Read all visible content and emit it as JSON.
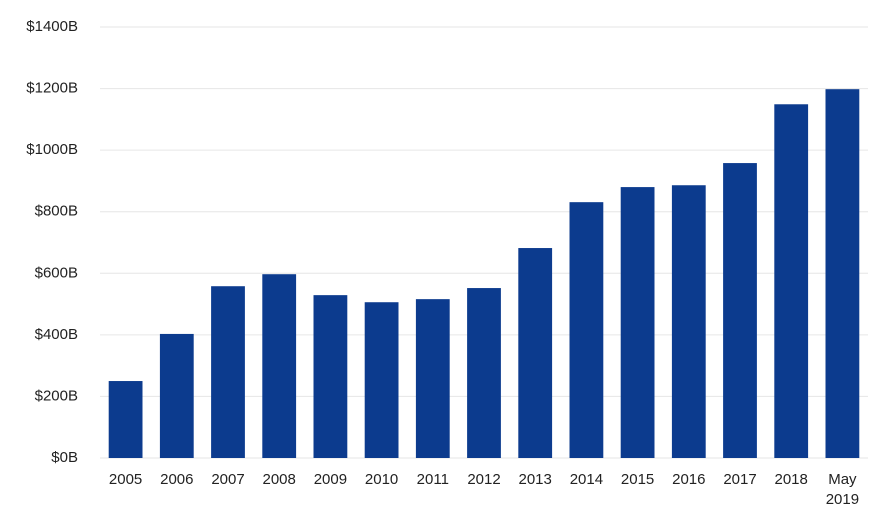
{
  "chart_data": {
    "type": "bar",
    "categories": [
      "2005",
      "2006",
      "2007",
      "2008",
      "2009",
      "2010",
      "2011",
      "2012",
      "2013",
      "2014",
      "2015",
      "2016",
      "2017",
      "2018",
      "May 2019"
    ],
    "values": [
      250,
      403,
      558,
      597,
      529,
      506,
      516,
      552,
      682,
      831,
      880,
      886,
      958,
      1149,
      1198
    ],
    "color": "#0c3b8e",
    "ylim": [
      0,
      1400
    ],
    "yticks": [
      {
        "value": 0,
        "label": "$0B"
      },
      {
        "value": 200,
        "label": "$200B"
      },
      {
        "value": 400,
        "label": "$400B"
      },
      {
        "value": 600,
        "label": "$600B"
      },
      {
        "value": 800,
        "label": "$800B"
      },
      {
        "value": 1000,
        "label": "$1000B"
      },
      {
        "value": 1200,
        "label": "$1200B"
      },
      {
        "value": 1400,
        "label": "$1400B"
      }
    ],
    "grid": true
  }
}
